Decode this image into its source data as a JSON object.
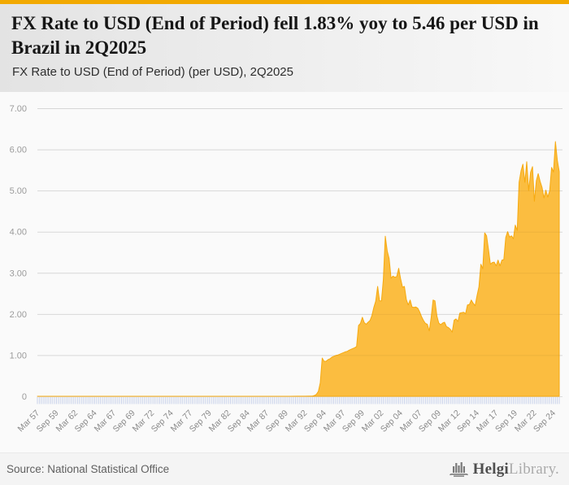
{
  "header": {
    "title": "FX Rate to USD (End of Period) fell 1.83% yoy to 5.46 per USD in Brazil in 2Q2025",
    "subtitle": "FX Rate to USD (End of Period) (per USD), 2Q2025"
  },
  "footer": {
    "source": "Source: National Statistical Office",
    "brand_primary": "Helgi",
    "brand_secondary": "Library."
  },
  "colors": {
    "accent_bar": "#F2A900",
    "area_fill": "#FBBB3A",
    "area_stroke": "#F6A90F",
    "gridline": "#e3e3e3",
    "gridline_overlay": "rgba(0,0,0,0.05)",
    "axis_tick": "#c9d2ea",
    "y_label": "#9b9b9b",
    "x_label": "#8a8a8a"
  },
  "chart_data": {
    "type": "area",
    "title": "FX Rate to USD (End of Period) (per USD), 2Q2025",
    "series_name": "Brazil FX rate to USD, end of period, quarterly",
    "unit": "per USD",
    "grid": true,
    "legend": "none",
    "x_range": [
      1957.25,
      2025.5
    ],
    "ylim": [
      0,
      7
    ],
    "quarters_total": 274,
    "y_ticks": [
      {
        "value": 7,
        "label": "7.00"
      },
      {
        "value": 6,
        "label": "6.00"
      },
      {
        "value": 5,
        "label": "5.00"
      },
      {
        "value": 4,
        "label": "4.00"
      },
      {
        "value": 3,
        "label": "3.00"
      },
      {
        "value": 2,
        "label": "2.00"
      },
      {
        "value": 1,
        "label": "1.00"
      },
      {
        "value": 0,
        "label": "0"
      }
    ],
    "x_ticks": [
      {
        "pos": 1957.25,
        "label": "Mar 57"
      },
      {
        "pos": 1959.75,
        "label": "Sep 59"
      },
      {
        "pos": 1962.25,
        "label": "Mar 62"
      },
      {
        "pos": 1964.75,
        "label": "Sep 64"
      },
      {
        "pos": 1967.25,
        "label": "Mar 67"
      },
      {
        "pos": 1969.75,
        "label": "Sep 69"
      },
      {
        "pos": 1972.25,
        "label": "Mar 72"
      },
      {
        "pos": 1974.75,
        "label": "Sep 74"
      },
      {
        "pos": 1977.25,
        "label": "Mar 77"
      },
      {
        "pos": 1979.75,
        "label": "Sep 79"
      },
      {
        "pos": 1982.25,
        "label": "Mar 82"
      },
      {
        "pos": 1984.75,
        "label": "Sep 84"
      },
      {
        "pos": 1987.25,
        "label": "Mar 87"
      },
      {
        "pos": 1989.75,
        "label": "Sep 89"
      },
      {
        "pos": 1992.25,
        "label": "Mar 92"
      },
      {
        "pos": 1994.75,
        "label": "Sep 94"
      },
      {
        "pos": 1997.25,
        "label": "Mar 97"
      },
      {
        "pos": 1999.75,
        "label": "Sep 99"
      },
      {
        "pos": 2002.25,
        "label": "Mar 02"
      },
      {
        "pos": 2004.75,
        "label": "Sep 04"
      },
      {
        "pos": 2007.25,
        "label": "Mar 07"
      },
      {
        "pos": 2009.75,
        "label": "Sep 09"
      },
      {
        "pos": 2012.25,
        "label": "Mar 12"
      },
      {
        "pos": 2014.75,
        "label": "Sep 14"
      },
      {
        "pos": 2017.25,
        "label": "Mar 17"
      },
      {
        "pos": 2019.75,
        "label": "Sep 19"
      },
      {
        "pos": 2022.25,
        "label": "Mar 22"
      },
      {
        "pos": 2024.75,
        "label": "Sep 24"
      }
    ],
    "points": [
      [
        1957.25,
        0
      ],
      [
        1990.25,
        0
      ],
      [
        1991.25,
        0.001
      ],
      [
        1992.25,
        0.002
      ],
      [
        1992.75,
        0.004
      ],
      [
        1993.25,
        0.008
      ],
      [
        1993.5,
        0.02
      ],
      [
        1993.75,
        0.05
      ],
      [
        1994.0,
        0.12
      ],
      [
        1994.25,
        0.33
      ],
      [
        1994.5,
        0.93
      ],
      [
        1994.75,
        0.85
      ],
      [
        1995.0,
        0.85
      ],
      [
        1995.25,
        0.89
      ],
      [
        1995.5,
        0.91
      ],
      [
        1995.75,
        0.95
      ],
      [
        1996.0,
        0.97
      ],
      [
        1996.25,
        0.99
      ],
      [
        1996.5,
        1.0
      ],
      [
        1996.75,
        1.02
      ],
      [
        1997.0,
        1.04
      ],
      [
        1997.25,
        1.06
      ],
      [
        1997.5,
        1.08
      ],
      [
        1997.75,
        1.09
      ],
      [
        1998.0,
        1.12
      ],
      [
        1998.25,
        1.14
      ],
      [
        1998.5,
        1.16
      ],
      [
        1998.75,
        1.18
      ],
      [
        1999.0,
        1.21
      ],
      [
        1999.25,
        1.72
      ],
      [
        1999.5,
        1.77
      ],
      [
        1999.75,
        1.92
      ],
      [
        2000.0,
        1.79
      ],
      [
        2000.25,
        1.75
      ],
      [
        2000.5,
        1.8
      ],
      [
        2000.75,
        1.84
      ],
      [
        2001.0,
        1.96
      ],
      [
        2001.25,
        2.16
      ],
      [
        2001.5,
        2.31
      ],
      [
        2001.75,
        2.67
      ],
      [
        2002.0,
        2.32
      ],
      [
        2002.25,
        2.32
      ],
      [
        2002.5,
        2.84
      ],
      [
        2002.75,
        3.89
      ],
      [
        2003.0,
        3.53
      ],
      [
        2003.25,
        3.35
      ],
      [
        2003.5,
        2.87
      ],
      [
        2003.75,
        2.92
      ],
      [
        2004.0,
        2.89
      ],
      [
        2004.25,
        2.91
      ],
      [
        2004.5,
        3.11
      ],
      [
        2004.75,
        2.86
      ],
      [
        2005.0,
        2.65
      ],
      [
        2005.25,
        2.67
      ],
      [
        2005.5,
        2.35
      ],
      [
        2005.75,
        2.22
      ],
      [
        2006.0,
        2.34
      ],
      [
        2006.25,
        2.17
      ],
      [
        2006.5,
        2.16
      ],
      [
        2006.75,
        2.17
      ],
      [
        2007.0,
        2.14
      ],
      [
        2007.25,
        2.05
      ],
      [
        2007.5,
        1.93
      ],
      [
        2007.75,
        1.84
      ],
      [
        2008.0,
        1.77
      ],
      [
        2008.25,
        1.75
      ],
      [
        2008.5,
        1.59
      ],
      [
        2008.75,
        1.91
      ],
      [
        2009.0,
        2.34
      ],
      [
        2009.25,
        2.32
      ],
      [
        2009.5,
        1.95
      ],
      [
        2009.75,
        1.78
      ],
      [
        2010.0,
        1.74
      ],
      [
        2010.25,
        1.78
      ],
      [
        2010.5,
        1.8
      ],
      [
        2010.75,
        1.69
      ],
      [
        2011.0,
        1.67
      ],
      [
        2011.25,
        1.63
      ],
      [
        2011.5,
        1.56
      ],
      [
        2011.75,
        1.85
      ],
      [
        2012.0,
        1.88
      ],
      [
        2012.25,
        1.82
      ],
      [
        2012.5,
        2.02
      ],
      [
        2012.75,
        2.03
      ],
      [
        2013.0,
        2.04
      ],
      [
        2013.25,
        2.01
      ],
      [
        2013.5,
        2.22
      ],
      [
        2013.75,
        2.23
      ],
      [
        2014.0,
        2.34
      ],
      [
        2014.25,
        2.26
      ],
      [
        2014.5,
        2.2
      ],
      [
        2014.75,
        2.45
      ],
      [
        2015.0,
        2.66
      ],
      [
        2015.25,
        3.21
      ],
      [
        2015.5,
        3.1
      ],
      [
        2015.75,
        3.97
      ],
      [
        2016.0,
        3.9
      ],
      [
        2016.25,
        3.56
      ],
      [
        2016.5,
        3.21
      ],
      [
        2016.75,
        3.25
      ],
      [
        2017.0,
        3.26
      ],
      [
        2017.25,
        3.17
      ],
      [
        2017.5,
        3.31
      ],
      [
        2017.75,
        3.17
      ],
      [
        2018.0,
        3.31
      ],
      [
        2018.25,
        3.32
      ],
      [
        2018.5,
        3.86
      ],
      [
        2018.75,
        4.0
      ],
      [
        2019.0,
        3.87
      ],
      [
        2019.25,
        3.9
      ],
      [
        2019.5,
        3.83
      ],
      [
        2019.75,
        4.16
      ],
      [
        2020.0,
        4.03
      ],
      [
        2020.25,
        5.2
      ],
      [
        2020.5,
        5.48
      ],
      [
        2020.75,
        5.64
      ],
      [
        2021.0,
        5.2
      ],
      [
        2021.25,
        5.7
      ],
      [
        2021.5,
        5.0
      ],
      [
        2021.75,
        5.44
      ],
      [
        2022.0,
        5.58
      ],
      [
        2022.25,
        4.74
      ],
      [
        2022.5,
        5.24
      ],
      [
        2022.75,
        5.41
      ],
      [
        2023.0,
        5.22
      ],
      [
        2023.25,
        5.08
      ],
      [
        2023.5,
        4.82
      ],
      [
        2023.75,
        5.01
      ],
      [
        2024.0,
        4.84
      ],
      [
        2024.25,
        4.99
      ],
      [
        2024.5,
        5.56
      ],
      [
        2024.75,
        5.45
      ],
      [
        2025.0,
        6.19
      ],
      [
        2025.25,
        5.74
      ],
      [
        2025.5,
        5.46
      ]
    ]
  }
}
